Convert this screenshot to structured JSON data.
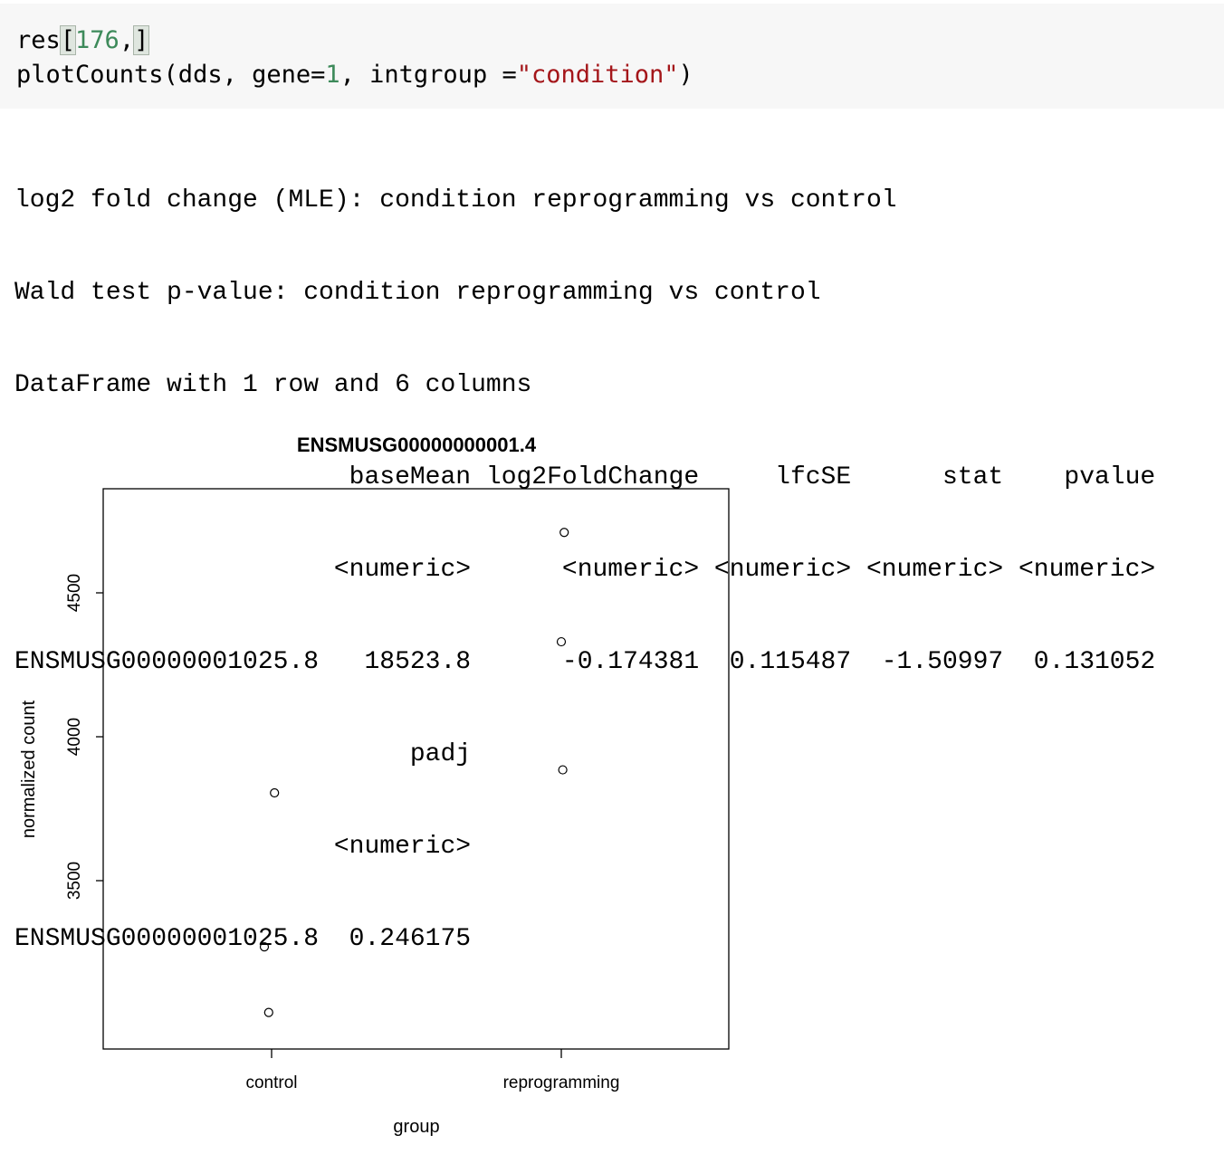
{
  "code_cell": {
    "line1": {
      "text_a": "res",
      "open_bracket": "[",
      "num": "176",
      "comma": ",",
      "close_bracket": "]"
    },
    "line2": {
      "text_a": "plotCounts(dds, gene=",
      "num": "1",
      "text_b": ", intgroup =",
      "str": "\"condition\"",
      "text_c": ")"
    }
  },
  "output_lines": [
    "log2 fold change (MLE): condition reprogramming vs control",
    "Wald test p-value: condition reprogramming vs control",
    "DataFrame with 1 row and 6 columns",
    "                      baseMean log2FoldChange     lfcSE      stat    pvalue",
    "                     <numeric>      <numeric> <numeric> <numeric> <numeric>",
    "ENSMUSG00000001025.8   18523.8      -0.174381  0.115487  -1.50997  0.131052",
    "                          padj",
    "                     <numeric>",
    "ENSMUSG00000001025.8  0.246175"
  ],
  "chart_data": {
    "type": "scatter",
    "title": "ENSMUSG00000000001.4",
    "xlabel": "group",
    "ylabel": "normalized count",
    "categories": [
      "control",
      "reprogramming"
    ],
    "yticks": [
      3500,
      4000,
      4500
    ],
    "ylim": [
      3230,
      4720
    ],
    "grid": false,
    "legend": "none",
    "points": [
      {
        "group": "control",
        "jitter": 0.02,
        "y": 3805
      },
      {
        "group": "control",
        "jitter": -0.05,
        "y": 3270
      },
      {
        "group": "control",
        "jitter": -0.02,
        "y": 3042
      },
      {
        "group": "reprogramming",
        "jitter": 0.02,
        "y": 4710
      },
      {
        "group": "reprogramming",
        "jitter": 0.0,
        "y": 4330
      },
      {
        "group": "reprogramming",
        "jitter": 0.01,
        "y": 3885
      }
    ]
  }
}
